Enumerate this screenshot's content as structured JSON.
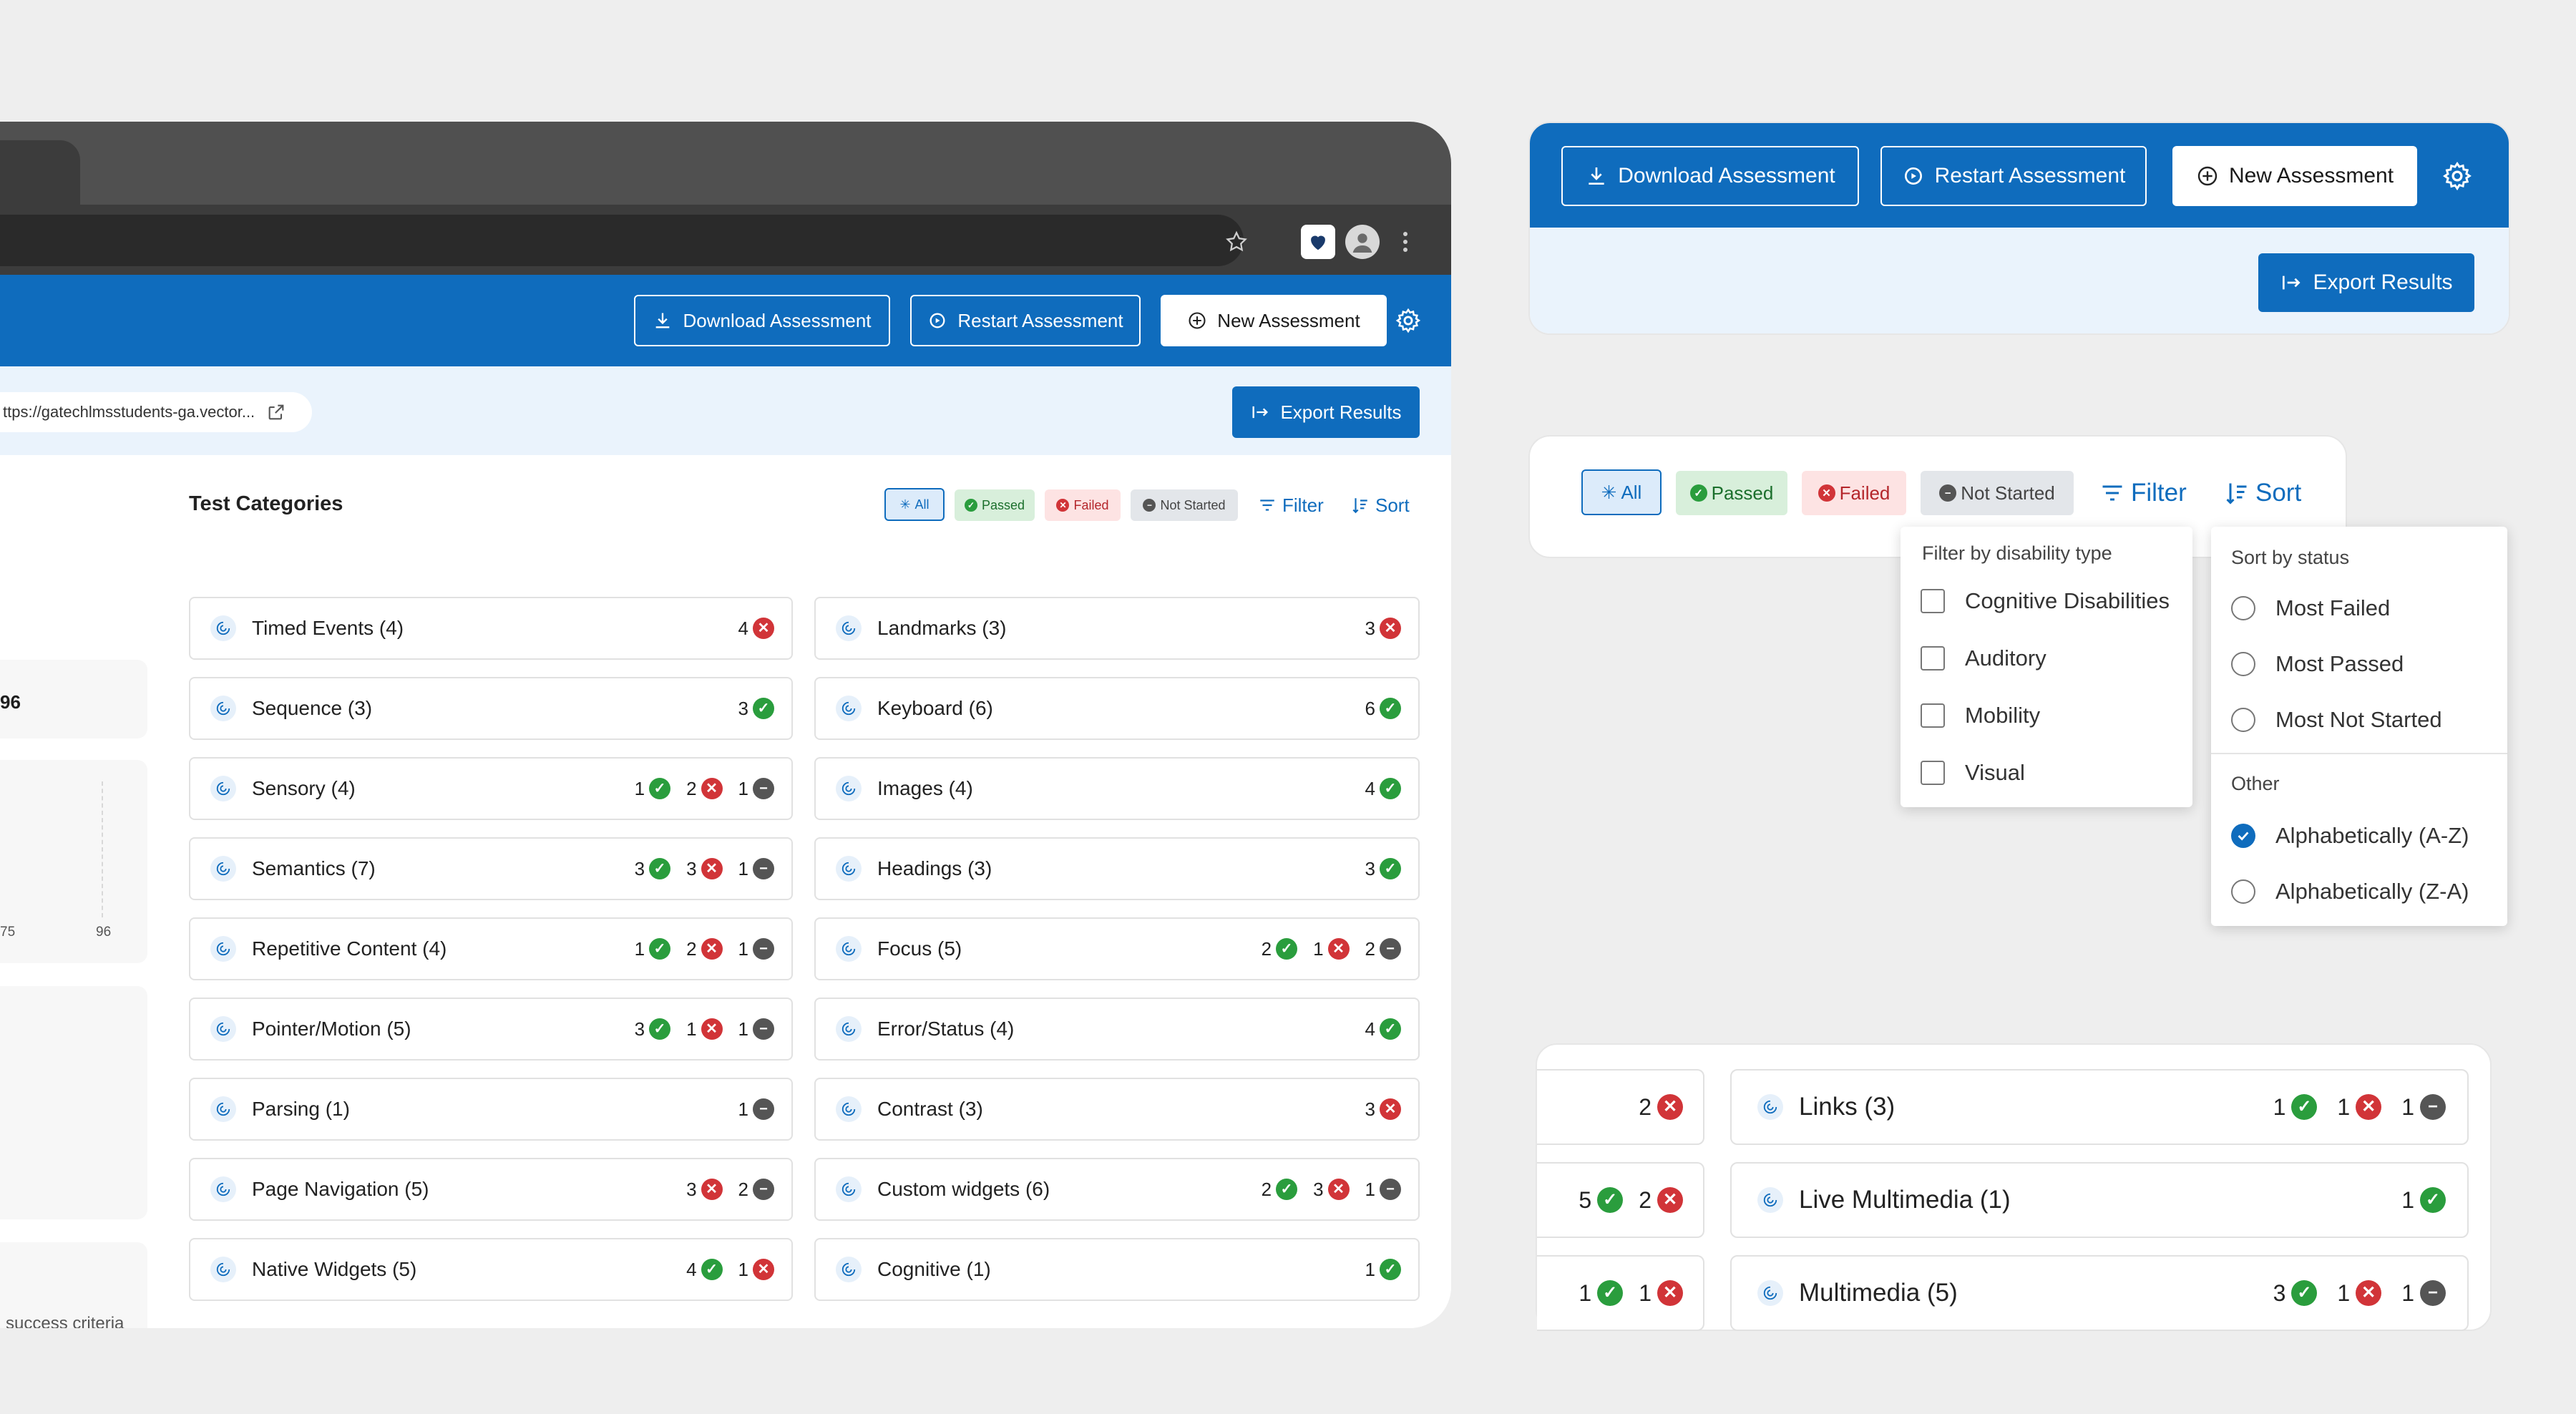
{
  "toolbar": {
    "download": "Download Assessment",
    "restart": "Restart Assessment",
    "new": "New Assessment",
    "export": "Export Results"
  },
  "url": "ttps://gatechlmsstudents-ga.vector...",
  "section_title": "Test Categories",
  "filters": {
    "all": "All",
    "passed": "Passed",
    "failed": "Failed",
    "not_started": "Not Started",
    "filter": "Filter",
    "sort": "Sort"
  },
  "sidebar": {
    "value": "96",
    "tick_left": "75",
    "tick_right": "96",
    "criteria": "success criteria"
  },
  "categories_left": [
    {
      "label": "Timed Events (4)",
      "badges": [
        {
          "n": "4",
          "s": "fail"
        }
      ]
    },
    {
      "label": "Sequence (3)",
      "badges": [
        {
          "n": "3",
          "s": "pass"
        }
      ]
    },
    {
      "label": "Sensory (4)",
      "badges": [
        {
          "n": "1",
          "s": "pass"
        },
        {
          "n": "2",
          "s": "fail"
        },
        {
          "n": "1",
          "s": "ns"
        }
      ]
    },
    {
      "label": "Semantics (7)",
      "badges": [
        {
          "n": "3",
          "s": "pass"
        },
        {
          "n": "3",
          "s": "fail"
        },
        {
          "n": "1",
          "s": "ns"
        }
      ]
    },
    {
      "label": "Repetitive Content (4)",
      "badges": [
        {
          "n": "1",
          "s": "pass"
        },
        {
          "n": "2",
          "s": "fail"
        },
        {
          "n": "1",
          "s": "ns"
        }
      ]
    },
    {
      "label": "Pointer/Motion (5)",
      "badges": [
        {
          "n": "3",
          "s": "pass"
        },
        {
          "n": "1",
          "s": "fail"
        },
        {
          "n": "1",
          "s": "ns"
        }
      ]
    },
    {
      "label": "Parsing (1)",
      "badges": [
        {
          "n": "1",
          "s": "ns"
        }
      ]
    },
    {
      "label": "Page Navigation (5)",
      "badges": [
        {
          "n": "3",
          "s": "fail"
        },
        {
          "n": "2",
          "s": "ns"
        }
      ]
    },
    {
      "label": "Native Widgets (5)",
      "badges": [
        {
          "n": "4",
          "s": "pass"
        },
        {
          "n": "1",
          "s": "fail"
        }
      ]
    }
  ],
  "categories_right": [
    {
      "label": "Landmarks (3)",
      "badges": [
        {
          "n": "3",
          "s": "fail"
        }
      ]
    },
    {
      "label": "Keyboard (6)",
      "badges": [
        {
          "n": "6",
          "s": "pass"
        }
      ]
    },
    {
      "label": "Images (4)",
      "badges": [
        {
          "n": "4",
          "s": "pass"
        }
      ]
    },
    {
      "label": "Headings (3)",
      "badges": [
        {
          "n": "3",
          "s": "pass"
        }
      ]
    },
    {
      "label": "Focus (5)",
      "badges": [
        {
          "n": "2",
          "s": "pass"
        },
        {
          "n": "1",
          "s": "fail"
        },
        {
          "n": "2",
          "s": "ns"
        }
      ]
    },
    {
      "label": "Error/Status (4)",
      "badges": [
        {
          "n": "4",
          "s": "pass"
        }
      ]
    },
    {
      "label": "Contrast (3)",
      "badges": [
        {
          "n": "3",
          "s": "fail"
        }
      ]
    },
    {
      "label": "Custom widgets (6)",
      "badges": [
        {
          "n": "2",
          "s": "pass"
        },
        {
          "n": "3",
          "s": "fail"
        },
        {
          "n": "1",
          "s": "ns"
        }
      ]
    },
    {
      "label": "Cognitive (1)",
      "badges": [
        {
          "n": "1",
          "s": "pass"
        }
      ]
    }
  ],
  "filter_menu": {
    "heading": "Filter by disability type",
    "options": [
      "Cognitive Disabilities",
      "Auditory",
      "Mobility",
      "Visual"
    ]
  },
  "sort_menu": {
    "heading": "Sort by status",
    "options": [
      "Most Failed",
      "Most Passed",
      "Most Not Started"
    ],
    "other_heading": "Other",
    "other_options": [
      "Alphabetically (A-Z)",
      "Alphabetically (Z-A)"
    ],
    "selected": "Alphabetically (A-Z)"
  },
  "zoom_rows": [
    {
      "left_badges": [
        {
          "n": "2",
          "s": "fail"
        }
      ],
      "label": "Links (3)",
      "badges": [
        {
          "n": "1",
          "s": "pass"
        },
        {
          "n": "1",
          "s": "fail"
        },
        {
          "n": "1",
          "s": "ns"
        }
      ]
    },
    {
      "left_badges": [
        {
          "n": "5",
          "s": "pass"
        },
        {
          "n": "2",
          "s": "fail"
        }
      ],
      "label": "Live Multimedia (1)",
      "badges": [
        {
          "n": "1",
          "s": "pass"
        }
      ]
    },
    {
      "left_badges": [
        {
          "n": "1",
          "s": "pass"
        },
        {
          "n": "1",
          "s": "fail"
        }
      ],
      "label": "Multimedia (5)",
      "badges": [
        {
          "n": "3",
          "s": "pass"
        },
        {
          "n": "1",
          "s": "fail"
        },
        {
          "n": "1",
          "s": "ns"
        }
      ]
    }
  ],
  "colors": {
    "brand": "#0f6cbd",
    "pass": "#2a9d3d",
    "fail": "#d13438",
    "not_started": "#555555"
  }
}
